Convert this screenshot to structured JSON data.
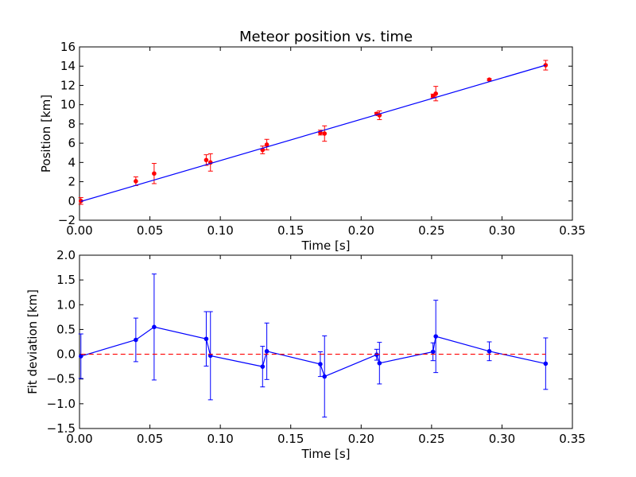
{
  "chart_data": [
    {
      "type": "scatter",
      "title": "Meteor position vs. time",
      "xlabel": "Time [s]",
      "ylabel": "Position [km]",
      "xlim": [
        0.0,
        0.35
      ],
      "ylim": [
        -2,
        16
      ],
      "xticks": [
        "0.00",
        "0.05",
        "0.10",
        "0.15",
        "0.20",
        "0.25",
        "0.30",
        "0.35"
      ],
      "yticks": [
        "−2",
        "0",
        "2",
        "4",
        "6",
        "8",
        "10",
        "12",
        "14",
        "16"
      ],
      "grid": false,
      "series": [
        {
          "kind": "errorbar-points",
          "color": "#ff0000",
          "x": [
            0.001,
            0.04,
            0.053,
            0.09,
            0.093,
            0.13,
            0.133,
            0.171,
            0.174,
            0.211,
            0.213,
            0.251,
            0.253,
            0.291,
            0.331
          ],
          "y": [
            0.0,
            2.05,
            2.85,
            4.25,
            4.0,
            5.3,
            5.85,
            7.1,
            7.0,
            9.05,
            8.9,
            10.9,
            11.15,
            12.6,
            14.1
          ],
          "err": [
            0.35,
            0.45,
            1.05,
            0.55,
            0.9,
            0.4,
            0.55,
            0.25,
            0.8,
            0.15,
            0.45,
            0.2,
            0.75,
            0.1,
            0.5
          ]
        },
        {
          "kind": "fit-line",
          "color": "#0000ff",
          "x": [
            0.001,
            0.331
          ],
          "y": [
            -0.05,
            14.1
          ]
        }
      ]
    },
    {
      "type": "line",
      "xlabel": "Time [s]",
      "ylabel": "Fit deviation [km]",
      "xlim": [
        0.0,
        0.35
      ],
      "ylim": [
        -1.5,
        2.0
      ],
      "xticks": [
        "0.00",
        "0.05",
        "0.10",
        "0.15",
        "0.20",
        "0.25",
        "0.30",
        "0.35"
      ],
      "yticks": [
        "−1.5",
        "−1.0",
        "−0.5",
        "0.0",
        "0.5",
        "1.0",
        "1.5",
        "2.0"
      ],
      "grid": false,
      "series": [
        {
          "kind": "errorbar-line",
          "color": "#0000ff",
          "x": [
            0.001,
            0.04,
            0.053,
            0.09,
            0.093,
            0.13,
            0.133,
            0.171,
            0.174,
            0.211,
            0.213,
            0.251,
            0.253,
            0.291,
            0.331
          ],
          "y": [
            -0.04,
            0.29,
            0.55,
            0.31,
            -0.03,
            -0.25,
            0.06,
            -0.2,
            -0.45,
            -0.01,
            -0.18,
            0.05,
            0.36,
            0.06,
            -0.19
          ],
          "err": [
            0.45,
            0.44,
            1.07,
            0.55,
            0.89,
            0.41,
            0.57,
            0.25,
            0.82,
            0.11,
            0.42,
            0.18,
            0.73,
            0.19,
            0.52
          ]
        },
        {
          "kind": "reference-line",
          "color": "#ff0000",
          "dashed": true,
          "x": [
            0.001,
            0.331
          ],
          "y": [
            0.0,
            0.0
          ]
        }
      ]
    }
  ]
}
